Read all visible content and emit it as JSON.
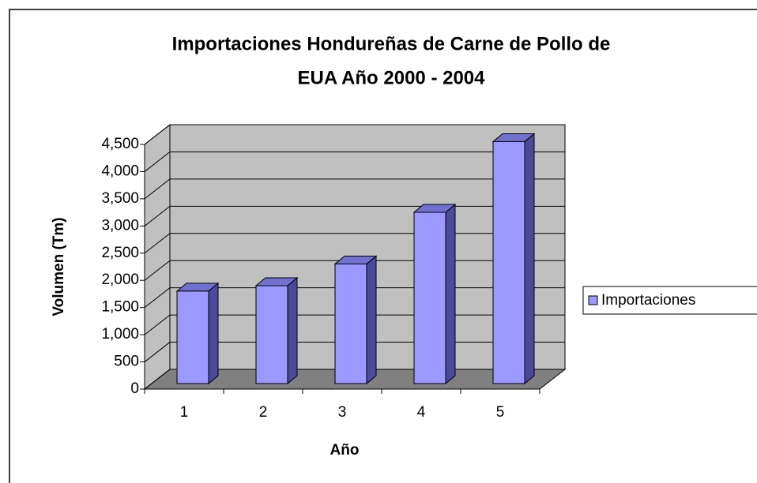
{
  "chart_data": {
    "type": "bar3d",
    "title": [
      "Importaciones Hondureñas de Carne de Pollo de",
      "EUA Año 2000 - 2004"
    ],
    "x_label": "Año",
    "y_label": "Volumen (Tm)",
    "categories": [
      "1",
      "2",
      "3",
      "4",
      "5"
    ],
    "series": [
      {
        "name": "Importaciones",
        "color": "#9999ff",
        "values": [
          1700,
          1800,
          2200,
          3150,
          4450
        ]
      }
    ],
    "ylim": [
      0,
      4500
    ],
    "yticks": [
      0,
      500,
      {
        "value": 1000,
        "label": "1,000"
      },
      {
        "value": 1500,
        "label": "1,500"
      },
      {
        "value": 2000,
        "label": "2,000"
      },
      {
        "value": 2500,
        "label": "2,500"
      },
      {
        "value": 3000,
        "label": "3,000"
      },
      {
        "value": 3500,
        "label": "3,500"
      },
      {
        "value": 4000,
        "label": "4,000"
      },
      {
        "value": 4500,
        "label": "4,500"
      }
    ],
    "grid": true,
    "legend": "right"
  }
}
